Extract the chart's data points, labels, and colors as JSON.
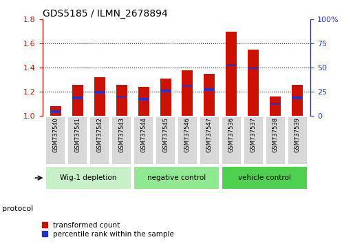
{
  "title": "GDS5185 / ILMN_2678894",
  "samples": [
    "GSM737540",
    "GSM737541",
    "GSM737542",
    "GSM737543",
    "GSM737544",
    "GSM737545",
    "GSM737546",
    "GSM737547",
    "GSM737536",
    "GSM737537",
    "GSM737538",
    "GSM737539"
  ],
  "red_values": [
    1.08,
    1.26,
    1.32,
    1.26,
    1.24,
    1.31,
    1.38,
    1.35,
    1.7,
    1.55,
    1.16,
    1.26
  ],
  "blue_values": [
    1.04,
    1.15,
    1.2,
    1.16,
    1.14,
    1.21,
    1.25,
    1.22,
    1.42,
    1.4,
    1.1,
    1.15
  ],
  "ylim_left": [
    1.0,
    1.8
  ],
  "yticks_left": [
    1.0,
    1.2,
    1.4,
    1.6,
    1.8
  ],
  "ylim_right": [
    0,
    100
  ],
  "yticks_right": [
    0,
    25,
    50,
    75,
    100
  ],
  "yticklabels_right": [
    "0",
    "25",
    "50",
    "75",
    "100%"
  ],
  "groups": [
    {
      "label": "Wig-1 depletion",
      "start": 0,
      "end": 3,
      "color": "#c8f0c8"
    },
    {
      "label": "negative control",
      "start": 4,
      "end": 7,
      "color": "#90e890"
    },
    {
      "label": "vehicle control",
      "start": 8,
      "end": 11,
      "color": "#50d050"
    }
  ],
  "bar_color": "#cc1100",
  "blue_color": "#2233cc",
  "bar_width": 0.5,
  "bg_color": "#ffffff",
  "protocol_label": "protocol",
  "legend_items": [
    {
      "label": "transformed count",
      "color": "#cc1100"
    },
    {
      "label": "percentile rank within the sample",
      "color": "#2233cc"
    }
  ]
}
